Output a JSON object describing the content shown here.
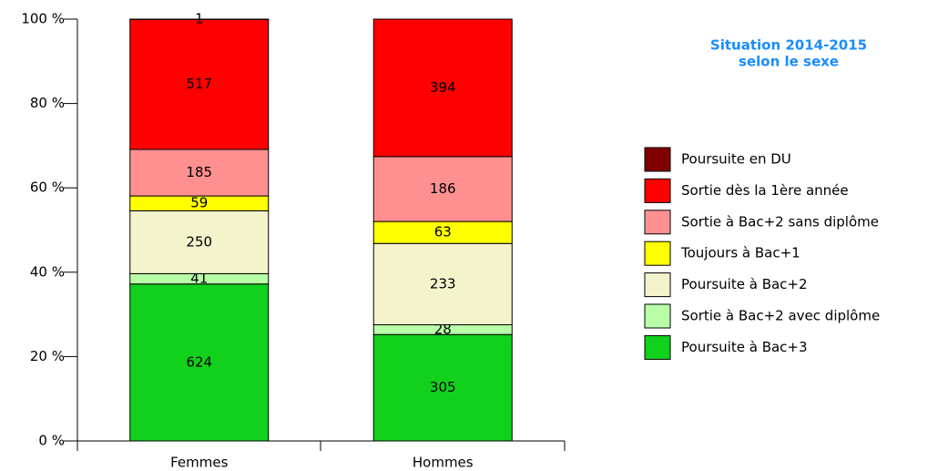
{
  "chart_data": {
    "type": "bar",
    "stacking": "percent",
    "title": "Situation 2014-2015",
    "subtitle": "selon le sexe",
    "categories": [
      "Femmes",
      "Hommes"
    ],
    "series": [
      {
        "name": "Poursuite à Bac+3",
        "color": "#11d11d",
        "values": [
          624,
          305
        ]
      },
      {
        "name": "Sortie à Bac+2 avec diplôme",
        "color": "#b8ffa8",
        "values": [
          41,
          28
        ]
      },
      {
        "name": "Poursuite à Bac+2",
        "color": "#f4f4cc",
        "values": [
          250,
          233
        ]
      },
      {
        "name": "Toujours à Bac+1",
        "color": "#ffff00",
        "values": [
          59,
          63
        ]
      },
      {
        "name": "Sortie à Bac+2 sans diplôme",
        "color": "#ff9090",
        "values": [
          185,
          186
        ]
      },
      {
        "name": "Sortie dès la 1ère année",
        "color": "#ff0000",
        "values": [
          517,
          394
        ]
      },
      {
        "name": "Poursuite en DU",
        "color": "#800000",
        "values": [
          1,
          0
        ]
      }
    ],
    "ylim": [
      0,
      100
    ],
    "yticks": [
      {
        "value": 0,
        "label": "0 %"
      },
      {
        "value": 20,
        "label": "20 %"
      },
      {
        "value": 40,
        "label": "40 %"
      },
      {
        "value": 60,
        "label": "60 %"
      },
      {
        "value": 80,
        "label": "80 %"
      },
      {
        "value": 100,
        "label": "100 %"
      }
    ]
  }
}
